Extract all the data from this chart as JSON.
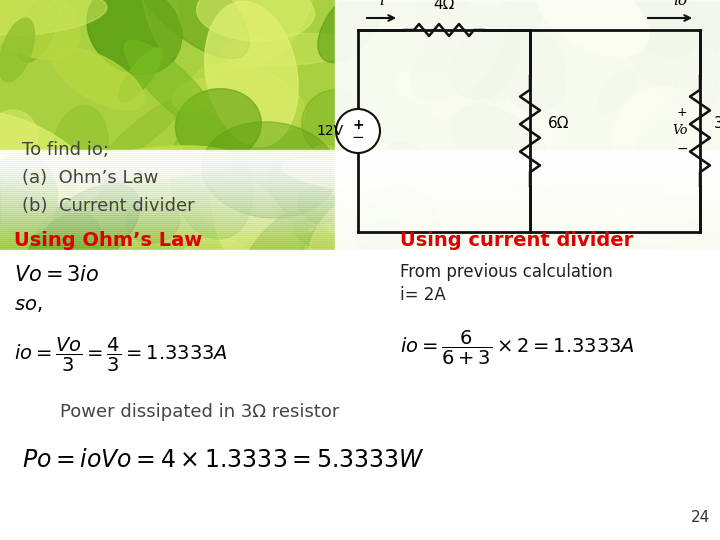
{
  "title_text1": "To find io;",
  "title_text2": "(a)  Ohm’s Law",
  "title_text3": "(b)  Current divider",
  "title_color": "#444444",
  "title_fontsize": 13,
  "ohm_heading": "Using Ohm’s Law",
  "ohm_heading_color": "#dd0000",
  "ohm_heading_fontsize": 14,
  "curr_heading": "Using current divider",
  "curr_heading_color": "#dd0000",
  "curr_heading_fontsize": 14,
  "curr_text1": "From previous calculation",
  "curr_text2": "i= 2A",
  "curr_text_fontsize": 12,
  "curr_text_color": "#222222",
  "power_text": "Power dissipated in 3Ω resistor",
  "power_text_fontsize": 13,
  "power_text_color": "#444444",
  "page_num": "24",
  "page_fontsize": 11,
  "eq_color": "#000000",
  "label_color": "#222222",
  "wire_color": "#111111"
}
